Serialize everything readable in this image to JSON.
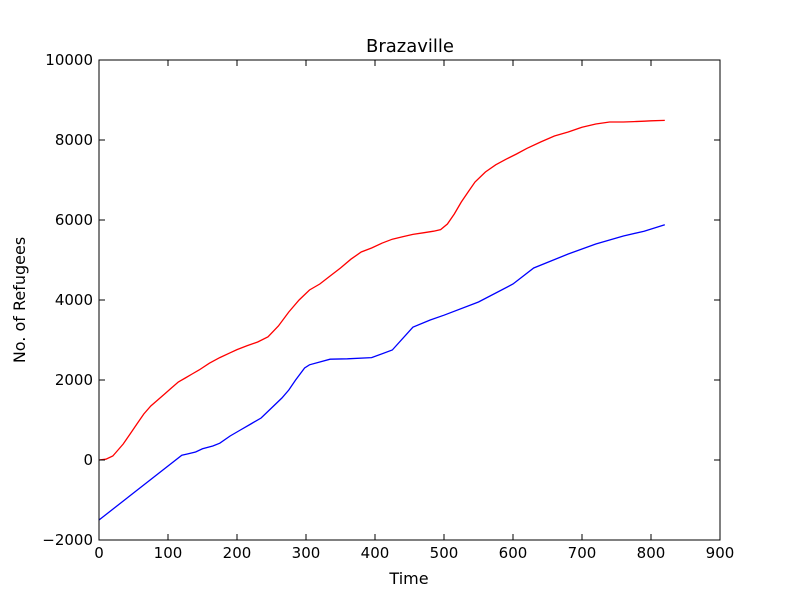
{
  "chart_data": {
    "type": "line",
    "title": "Brazaville",
    "xlabel": "Time",
    "ylabel": "No. of Refugees",
    "xlim": [
      0,
      900
    ],
    "ylim": [
      -2000,
      10000
    ],
    "xticks": [
      0,
      100,
      200,
      300,
      400,
      500,
      600,
      700,
      800,
      900
    ],
    "yticks": [
      -2000,
      0,
      2000,
      4000,
      6000,
      8000,
      10000
    ],
    "grid": false,
    "legend": "none",
    "series": [
      {
        "color": "#ff0000",
        "x": [
          0,
          10,
          20,
          25,
          35,
          45,
          55,
          65,
          75,
          85,
          95,
          105,
          115,
          125,
          135,
          145,
          160,
          175,
          190,
          200,
          215,
          230,
          245,
          260,
          275,
          290,
          305,
          320,
          335,
          350,
          365,
          380,
          395,
          410,
          425,
          440,
          455,
          470,
          485,
          495,
          505,
          515,
          525,
          535,
          545,
          560,
          575,
          590,
          605,
          620,
          640,
          660,
          680,
          700,
          720,
          740,
          760,
          775,
          790,
          800,
          820
        ],
        "y": [
          0,
          20,
          100,
          200,
          400,
          650,
          900,
          1150,
          1350,
          1500,
          1650,
          1800,
          1950,
          2050,
          2150,
          2250,
          2420,
          2560,
          2680,
          2760,
          2860,
          2950,
          3080,
          3350,
          3700,
          4000,
          4250,
          4400,
          4600,
          4800,
          5020,
          5200,
          5300,
          5420,
          5520,
          5580,
          5640,
          5680,
          5720,
          5760,
          5900,
          6150,
          6450,
          6700,
          6950,
          7200,
          7380,
          7520,
          7650,
          7790,
          7950,
          8100,
          8200,
          8320,
          8400,
          8450,
          8450,
          8460,
          8470,
          8480,
          8490
        ]
      },
      {
        "color": "#0000ff",
        "x": [
          0,
          120,
          128,
          140,
          150,
          165,
          175,
          190,
          205,
          220,
          235,
          250,
          265,
          275,
          285,
          298,
          305,
          320,
          335,
          360,
          395,
          425,
          455,
          480,
          500,
          550,
          600,
          630,
          680,
          720,
          760,
          790,
          820
        ],
        "y": [
          -1500,
          120,
          150,
          200,
          280,
          350,
          420,
          600,
          750,
          900,
          1050,
          1300,
          1550,
          1750,
          2000,
          2300,
          2380,
          2450,
          2520,
          2530,
          2560,
          2750,
          3320,
          3500,
          3620,
          3950,
          4400,
          4800,
          5150,
          5400,
          5600,
          5720,
          5880
        ]
      }
    ]
  }
}
